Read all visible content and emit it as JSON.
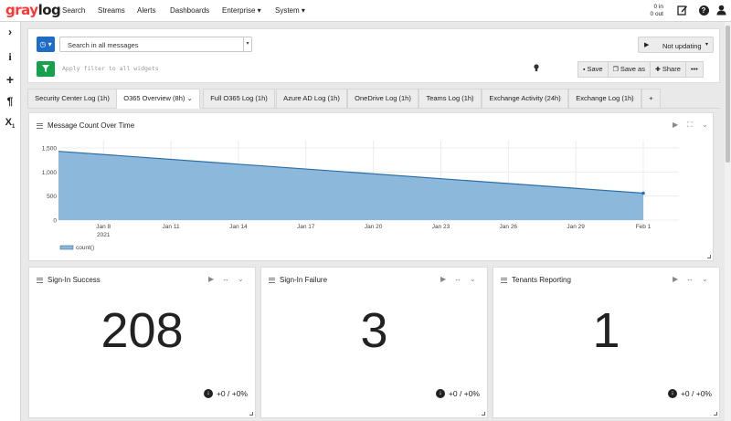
{
  "logo": {
    "part1": "gray",
    "part2": "log"
  },
  "nav": [
    "Search",
    "Streams",
    "Alerts",
    "Dashboards",
    "Enterprise ▾",
    "System ▾"
  ],
  "throughput": {
    "in": "0 in",
    "out": "0 out"
  },
  "search": {
    "query_placeholder": "Search in all messages",
    "filter_placeholder": "Apply filter to all widgets",
    "refresh_label": "Not updating",
    "save": "Save",
    "save_as": "Save as",
    "share": "Share",
    "more": "•••"
  },
  "tabs": [
    "Security Center Log (1h)",
    "O365 Overview (8h)",
    "Full O365 Log (1h)",
    "Azure AD Log (1h)",
    "OneDrive Log (1h)",
    "Teams Log (1h)",
    "Exchange Activity (24h)",
    "Exchange Log (1h)",
    "+"
  ],
  "active_tab": 1,
  "chart_widget": {
    "title": "Message Count Over Time",
    "legend": "count()"
  },
  "chart_data": {
    "type": "area",
    "x": [
      "2021-01-06",
      "2021-02-01"
    ],
    "y": [
      1430,
      560
    ],
    "series": [
      {
        "name": "count()",
        "values": [
          1430,
          560
        ]
      }
    ],
    "xticks": [
      "Jan 8",
      "Jan 11",
      "Jan 14",
      "Jan 17",
      "Jan 20",
      "Jan 23",
      "Jan 26",
      "Jan 29",
      "Feb 1"
    ],
    "xtick_sub": "2021",
    "yticks": [
      "1,500",
      "1,000",
      "500",
      "0"
    ],
    "ylim": [
      0,
      1500
    ],
    "color": "#8cb8dc",
    "line_color": "#2e6ea6",
    "grid": true,
    "legend_position": "bottom-left"
  },
  "stats": [
    {
      "title": "Sign-In Success",
      "value": "208",
      "trend": "+0 / +0%"
    },
    {
      "title": "Sign-In Failure",
      "value": "3",
      "trend": "+0 / +0%"
    },
    {
      "title": "Tenants Reporting",
      "value": "1",
      "trend": "+0 / +0%"
    }
  ],
  "colors": {
    "brand": "#ff3633",
    "primary": "#1f6cc6",
    "success": "#16a14b"
  }
}
